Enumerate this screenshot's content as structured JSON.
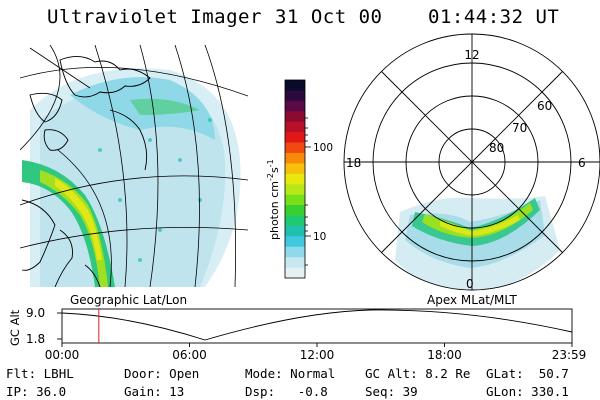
{
  "header": {
    "instrument": "Ultraviolet Imager",
    "date": "31 Oct 00",
    "time": "01:44:32 UT"
  },
  "colorbar": {
    "label_main": "photon cm",
    "label_exp1": "-2",
    "label_mid": "s",
    "label_exp2": "-1",
    "ticks": [
      "100",
      "10"
    ],
    "colors": [
      "#0a0a2a",
      "#2a0a3a",
      "#5a0a46",
      "#8a0a30",
      "#b8102a",
      "#e01818",
      "#f04a10",
      "#f88a0a",
      "#f8c00a",
      "#e8e810",
      "#b8e818",
      "#78e018",
      "#38d030",
      "#20c870",
      "#20c0b0",
      "#40c8e0",
      "#90d8ec",
      "#c8e8f0",
      "#e4f0f4"
    ]
  },
  "map_left": {
    "label": "Geographic Lat/Lon"
  },
  "polar": {
    "label": "Apex MLat/MLT",
    "mlt_labels": {
      "top": "12",
      "left": "18",
      "right": "6",
      "bottom": "0"
    },
    "lat_labels": [
      "60",
      "70",
      "80"
    ]
  },
  "altitude_plot": {
    "ylabel": "GC Alt",
    "yticks": [
      "9.0",
      "1.8"
    ],
    "xticks": [
      "00:00",
      "06:00",
      "12:00",
      "18:00",
      "23:59"
    ],
    "marker_time": "01:44"
  },
  "info": {
    "flt_label": "Flt:",
    "flt_value": "LBHL",
    "ip_label": "IP:",
    "ip_value": "36.0",
    "door_label": "Door:",
    "door_value": "Open",
    "gain_label": "Gain:",
    "gain_value": "13",
    "mode_label": "Mode:",
    "mode_value": "Normal",
    "dsp_label": "Dsp:",
    "dsp_value": "-0.8",
    "gcalt_label": "GC Alt:",
    "gcalt_value": "8.2 Re",
    "seq_label": "Seq:",
    "seq_value": "39",
    "glat_label": "GLat:",
    "glat_value": "50.7",
    "glon_label": "GLon:",
    "glon_value": "330.1"
  }
}
